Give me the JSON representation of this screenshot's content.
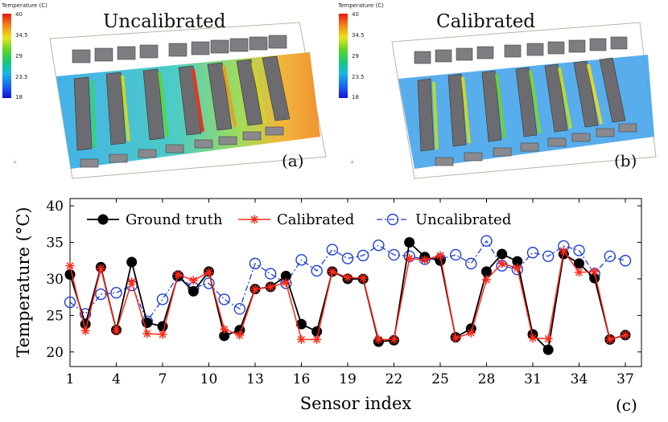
{
  "panel_a": {
    "title": "Uncalibrated",
    "label": "(a)",
    "colorbar": {
      "title": "Temperature (C)",
      "ticks": [
        "40",
        "34.5",
        "29",
        "23.5",
        "18"
      ]
    }
  },
  "panel_b": {
    "title": "Calibrated",
    "label": "(b)",
    "colorbar": {
      "title": "Temperature (C)",
      "ticks": [
        "40",
        "34.5",
        "29",
        "23.5",
        "18"
      ]
    }
  },
  "panel_c_label": "(c)",
  "colors": {
    "ground_truth": "#000000",
    "calibrated": "#ff2a1a",
    "uncalibrated": "#1f3fd6"
  },
  "chart_data": {
    "type": "line",
    "xlabel": "Sensor index",
    "ylabel": "Temperature (°C)",
    "xlim": [
      1,
      37
    ],
    "ylim": [
      18,
      41
    ],
    "xticks": [
      "1",
      "4",
      "7",
      "10",
      "13",
      "16",
      "19",
      "22",
      "25",
      "28",
      "31",
      "34",
      "37"
    ],
    "yticks": [
      "20",
      "25",
      "30",
      "35",
      "40"
    ],
    "legend_position": "top",
    "x": [
      1,
      2,
      3,
      4,
      5,
      6,
      7,
      8,
      9,
      10,
      11,
      12,
      13,
      14,
      15,
      16,
      17,
      18,
      19,
      20,
      21,
      22,
      23,
      24,
      25,
      26,
      27,
      28,
      29,
      30,
      31,
      32,
      33,
      34,
      35,
      36,
      37
    ],
    "series": [
      {
        "name": "Ground truth",
        "values": [
          30.6,
          23.8,
          31.6,
          23.0,
          32.3,
          24.0,
          23.5,
          30.4,
          28.3,
          31.0,
          22.2,
          23.0,
          28.6,
          28.9,
          30.4,
          23.8,
          22.8,
          31.0,
          30.0,
          30.0,
          21.4,
          21.6,
          35.0,
          33.0,
          32.5,
          22.0,
          23.2,
          31.0,
          33.4,
          32.4,
          22.4,
          20.3,
          33.4,
          32.1,
          30.1,
          21.7,
          22.3
        ]
      },
      {
        "name": "Calibrated",
        "values": [
          31.8,
          22.9,
          31.4,
          22.9,
          29.6,
          22.5,
          22.4,
          30.6,
          29.8,
          30.9,
          23.1,
          22.3,
          28.6,
          28.9,
          29.5,
          21.7,
          21.7,
          31.0,
          30.2,
          30.1,
          21.7,
          21.7,
          32.8,
          32.6,
          33.2,
          21.9,
          22.6,
          29.9,
          32.1,
          31.5,
          21.9,
          21.8,
          33.8,
          30.9,
          31.0,
          21.7,
          22.3
        ]
      },
      {
        "name": "Uncalibrated",
        "values": [
          26.8,
          25.2,
          27.9,
          28.1,
          29.1,
          24.2,
          27.2,
          30.4,
          28.8,
          29.4,
          27.2,
          25.9,
          32.1,
          30.7,
          29.4,
          32.6,
          31.1,
          34.0,
          32.8,
          33.2,
          34.6,
          33.3,
          33.1,
          32.7,
          32.7,
          33.3,
          32.1,
          35.2,
          31.8,
          31.3,
          33.6,
          33.1,
          34.5,
          33.9,
          30.7,
          33.1,
          32.5
        ]
      }
    ]
  }
}
